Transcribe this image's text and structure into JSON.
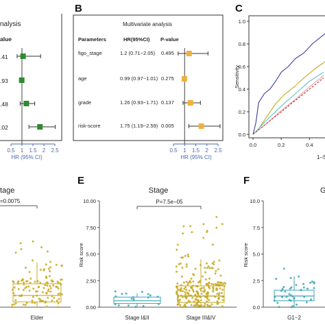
{
  "panels": {
    "A": {
      "title_fragment": "nalysis",
      "pval_header_fragment": "alue",
      "pval_fragments": [
        ".41",
        ".93",
        ".48",
        ".02"
      ],
      "xlabel": "HR (95% CI)",
      "xticks": [
        "0.5",
        "1",
        "1.5",
        "2",
        "2.5"
      ]
    },
    "B": {
      "letter": "B",
      "title": "Multivariate analysis",
      "headers": {
        "param": "Parameters",
        "hr": "HR(95%CI)",
        "p": "P-value"
      },
      "rows": [
        {
          "param": "figo_stage",
          "hr": "1.2 (0.71~2.05)",
          "p": "0.495"
        },
        {
          "param": "age",
          "hr": "0.99 (0.97~1.01)",
          "p": "0.275"
        },
        {
          "param": "grade",
          "hr": "1.26 (0.93~1.71)",
          "p": "0.137"
        },
        {
          "param": "risk-score",
          "hr": "1.75 (1.19~2.59)",
          "p": "0.005"
        }
      ],
      "xlabel": "HR (95% CI)",
      "xticks": [
        "0.5",
        "1",
        "1.5",
        "2",
        "2.5"
      ]
    },
    "C": {
      "letter": "C",
      "ylabel": "Sensitivity",
      "xlabel_fragment": "1–S",
      "yticks": [
        "0.0",
        "0.2",
        "0.4",
        "0.6",
        "0.8",
        "1.0"
      ],
      "xticks": [
        "0.0",
        "0.2",
        "0.4"
      ]
    },
    "D": {
      "title_fragment": "tage",
      "pval_fragment": "=0.0075",
      "xtick": "Elder"
    },
    "E": {
      "letter": "E",
      "title": "Stage",
      "pval": "P=7.5e−05",
      "ylabel": "Risk score",
      "yticks": [
        "0.00",
        "2.50",
        "5.00",
        "7.50",
        "10.00"
      ],
      "xticks": [
        "Stage I&II",
        "Stage III&IV"
      ]
    },
    "F": {
      "letter": "F",
      "title_fragment": "G",
      "ylabel": "Risk score",
      "yticks": [
        "0.0",
        "2.5",
        "5.0",
        "7.5",
        "10.0"
      ],
      "xtick": "G1~2"
    }
  },
  "colors": {
    "green": "#2e8b2e",
    "orange": "#f0b040",
    "navy": "#3a3a9a",
    "gold": "#c8a820",
    "cyan": "#60c0c8",
    "pink": "#e8a0a0",
    "red": "#c03030",
    "teal": "#3aa6b0",
    "axis_blue": "#4a6aa8"
  },
  "chart_data": [
    {
      "panel": "A",
      "type": "forest",
      "x_scale": "HR",
      "xlim": [
        0.5,
        2.5
      ],
      "series": [
        {
          "hr": 1.05,
          "lo": 0.78,
          "hi": 1.85
        },
        {
          "hr": 0.99,
          "lo": 0.97,
          "hi": 1.01
        },
        {
          "hr": 1.2,
          "lo": 0.92,
          "hi": 1.58
        },
        {
          "hr": 1.82,
          "lo": 1.32,
          "hi": 2.52
        }
      ]
    },
    {
      "panel": "B",
      "type": "forest",
      "xlim": [
        0.5,
        2.5
      ],
      "series": [
        {
          "name": "figo_stage",
          "hr": 1.2,
          "lo": 0.71,
          "hi": 2.05
        },
        {
          "name": "age",
          "hr": 0.99,
          "lo": 0.97,
          "hi": 1.01
        },
        {
          "name": "grade",
          "hr": 1.26,
          "lo": 0.93,
          "hi": 1.71
        },
        {
          "name": "risk-score",
          "hr": 1.75,
          "lo": 1.19,
          "hi": 2.59
        }
      ]
    },
    {
      "panel": "C",
      "type": "line",
      "xlim": [
        0,
        1
      ],
      "ylim": [
        0,
        1
      ],
      "series": [
        {
          "color": "navy",
          "x": [
            0,
            0.02,
            0.04,
            0.08,
            0.12,
            0.16,
            0.2,
            0.25,
            0.3,
            0.36,
            0.42,
            0.48,
            0.52
          ],
          "y": [
            0,
            0.1,
            0.28,
            0.36,
            0.4,
            0.47,
            0.55,
            0.6,
            0.67,
            0.72,
            0.8,
            0.86,
            0.9
          ]
        },
        {
          "color": "gold",
          "x": [
            0,
            0.04,
            0.1,
            0.16,
            0.22,
            0.3,
            0.38,
            0.46,
            0.52
          ],
          "y": [
            0,
            0.05,
            0.16,
            0.27,
            0.35,
            0.43,
            0.52,
            0.6,
            0.65
          ]
        },
        {
          "color": "cyan",
          "x": [
            0,
            0.1,
            0.2,
            0.3,
            0.4,
            0.5
          ],
          "y": [
            0,
            0.13,
            0.25,
            0.36,
            0.47,
            0.55
          ]
        },
        {
          "color": "pink",
          "x": [
            0,
            0.1,
            0.2,
            0.3,
            0.4,
            0.5
          ],
          "y": [
            0,
            0.1,
            0.21,
            0.31,
            0.42,
            0.52
          ]
        },
        {
          "color": "red",
          "x": [
            0,
            0.5
          ],
          "y": [
            0,
            0.5
          ],
          "dashed": true
        }
      ]
    },
    {
      "panel": "D",
      "type": "box",
      "categories": [
        "Elder"
      ],
      "box": {
        "q1": 0.5,
        "median": 1.1,
        "q3": 2.2,
        "whisker_lo": 0.0,
        "whisker_hi": 4.2
      },
      "ylim": [
        0,
        10
      ]
    },
    {
      "panel": "E",
      "type": "box",
      "categories": [
        "Stage I&II",
        "Stage III&IV"
      ],
      "ylim": [
        0,
        10
      ],
      "boxes": [
        {
          "q1": 0.35,
          "median": 0.6,
          "q3": 0.95,
          "whisker_lo": 0.0,
          "whisker_hi": 1.3
        },
        {
          "q1": 0.45,
          "median": 1.05,
          "q3": 2.0,
          "whisker_lo": 0.0,
          "whisker_hi": 4.5
        }
      ]
    },
    {
      "panel": "F",
      "type": "box",
      "categories": [
        "G1~2"
      ],
      "ylim": [
        0,
        10
      ],
      "box": {
        "q1": 0.6,
        "median": 1.05,
        "q3": 1.6,
        "whisker_lo": 0.0,
        "whisker_hi": 2.9
      }
    }
  ]
}
